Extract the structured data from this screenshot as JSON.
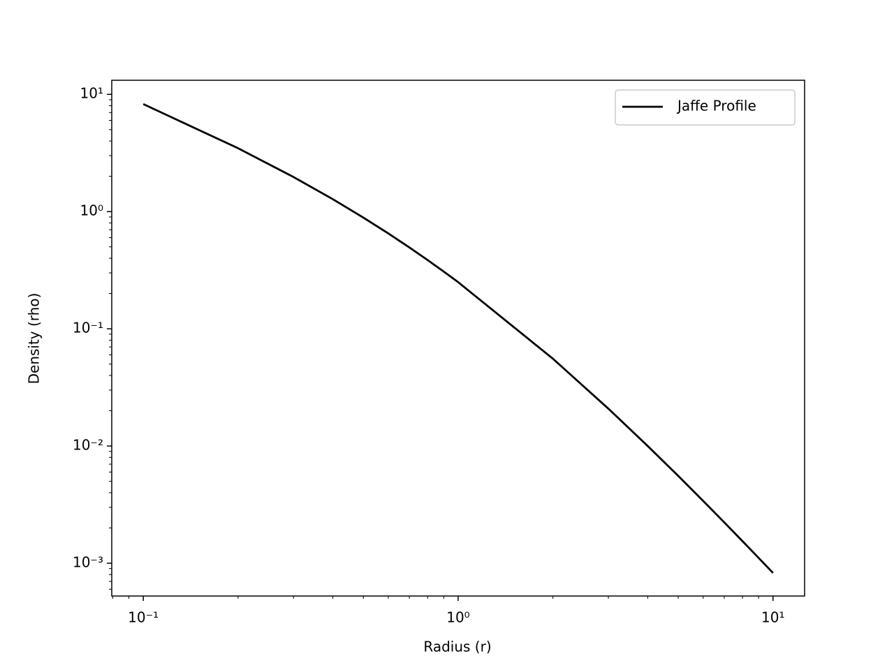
{
  "chart_data": {
    "type": "line",
    "xlabel": "Radius (r)",
    "ylabel": "Density (rho)",
    "xscale": "log",
    "yscale": "log",
    "legend": "upper right",
    "x": [
      0.1,
      0.2,
      0.3,
      0.4,
      0.5,
      0.6,
      0.7,
      0.8,
      0.9,
      1,
      2,
      3,
      4,
      5,
      6,
      7,
      8,
      9,
      10
    ],
    "series": [
      {
        "name": "Jaffe Profile",
        "color": "#000000",
        "values": [
          8.264,
          3.472,
          1.972,
          1.276,
          0.8889,
          0.651,
          0.4943,
          0.3858,
          0.3078,
          0.25,
          0.05556,
          0.02083,
          0.01,
          0.005556,
          0.003401,
          0.002232,
          0.001543,
          0.001111,
          0.0008264
        ]
      }
    ],
    "xlim": [
      0.0794,
      12.6
    ],
    "ylim": [
      0.000525,
      13.2
    ],
    "xticks": [
      {
        "value": 0.1,
        "label": "10⁻¹"
      },
      {
        "value": 1,
        "label": "10⁰"
      },
      {
        "value": 10,
        "label": "10¹"
      }
    ],
    "yticks": [
      {
        "value": 0.001,
        "label": "10⁻³"
      },
      {
        "value": 0.01,
        "label": "10⁻²"
      },
      {
        "value": 0.1,
        "label": "10⁻¹"
      },
      {
        "value": 1,
        "label": "10⁰"
      },
      {
        "value": 10,
        "label": "10¹"
      }
    ],
    "xminorticks": [
      0.08,
      0.09,
      0.2,
      0.3,
      0.4,
      0.5,
      0.6,
      0.7,
      0.8,
      0.9,
      2,
      3,
      4,
      5,
      6,
      7,
      8,
      9
    ],
    "yminorticks": [
      0.0006,
      0.0007,
      0.0008,
      0.0009,
      0.002,
      0.003,
      0.004,
      0.005,
      0.006,
      0.007,
      0.008,
      0.009,
      0.02,
      0.03,
      0.04,
      0.05,
      0.06,
      0.07,
      0.08,
      0.09,
      0.2,
      0.3,
      0.4,
      0.5,
      0.6,
      0.7,
      0.8,
      0.9,
      2,
      3,
      4,
      5,
      6,
      7,
      8,
      9
    ],
    "grid": false
  }
}
